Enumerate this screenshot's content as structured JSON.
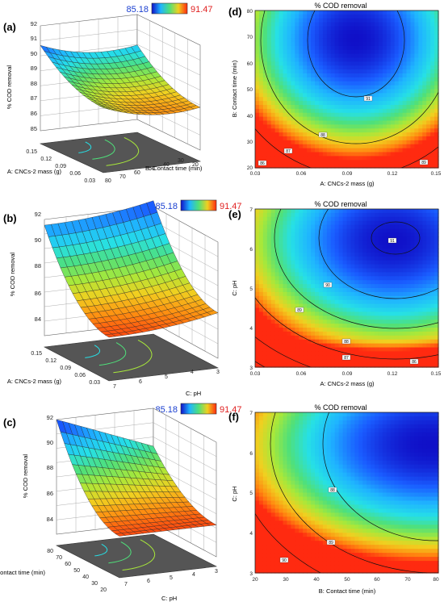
{
  "colorbar": {
    "min": "85.18",
    "max": "91.47",
    "min_color": "#1a3fd0",
    "max_color": "#e02020"
  },
  "palette": [
    "#1010c8",
    "#1a5cff",
    "#1fb4ff",
    "#26e0e6",
    "#4fe07a",
    "#a8e83a",
    "#f0d020",
    "#ff8a10",
    "#ff2a10"
  ],
  "panels": {
    "a": {
      "label": "(a)",
      "zlabel": "% COD removal",
      "xlabel": "A: CNCs-2 mass (g)",
      "ylabel": "B: Contact time (min)",
      "z_ticks": [
        "85",
        "86",
        "87",
        "88",
        "89",
        "90",
        "91",
        "92"
      ],
      "x_ticks": [
        "0.15",
        "0.12",
        "0.09",
        "0.06",
        "0.03"
      ],
      "y_ticks": [
        "80",
        "70",
        "60",
        "50",
        "40",
        "30",
        "20"
      ]
    },
    "b": {
      "label": "(b)",
      "zlabel": "% COD removal",
      "xlabel": "A: CNCs-2 mass (g)",
      "ylabel": "C: pH",
      "z_ticks": [
        "84",
        "86",
        "88",
        "90",
        "92"
      ],
      "x_ticks": [
        "0.15",
        "0.12",
        "0.09",
        "0.06",
        "0.03"
      ],
      "y_ticks": [
        "7",
        "6",
        "5",
        "4",
        "3"
      ]
    },
    "c": {
      "label": "(c)",
      "zlabel": "% COD removal",
      "xlabel": "B: Contact time (min)",
      "ylabel": "C: pH",
      "z_ticks": [
        "84",
        "86",
        "88",
        "90",
        "92"
      ],
      "x_ticks": [
        "80",
        "70",
        "60",
        "50",
        "40",
        "30",
        "20"
      ],
      "y_ticks": [
        "7",
        "6",
        "5",
        "4",
        "3"
      ]
    },
    "d": {
      "label": "(d)",
      "title": "% COD removal",
      "xlabel": "A: CNCs-2 mass (g)",
      "ylabel": "B: Contact time (min)",
      "x_ticks": [
        "0.03",
        "0.06",
        "0.09",
        "0.12",
        "0.15"
      ],
      "y_ticks": [
        "80",
        "70",
        "60",
        "50",
        "40",
        "30",
        "20"
      ],
      "contour_labels": [
        "86",
        "87",
        "88",
        "89",
        "91"
      ]
    },
    "e": {
      "label": "(e)",
      "title": "% COD removal",
      "xlabel": "A: CNCs-2 mass (g)",
      "ylabel": "C: pH",
      "x_ticks": [
        "0.03",
        "0.06",
        "0.09",
        "0.12",
        "0.15"
      ],
      "y_ticks": [
        "7",
        "6",
        "5",
        "4",
        "3"
      ],
      "contour_labels": [
        "91",
        "90",
        "89",
        "88",
        "87",
        "86"
      ]
    },
    "f": {
      "label": "(f)",
      "title": "% COD removal",
      "xlabel": "B: Contact time (min)",
      "ylabel": "C: pH",
      "x_ticks": [
        "20",
        "30",
        "40",
        "50",
        "60",
        "70",
        "80"
      ],
      "y_ticks": [
        "7",
        "6",
        "5",
        "4",
        "3"
      ],
      "contour_labels": [
        "90",
        "89",
        "88"
      ]
    }
  },
  "chart_data": [
    {
      "type": "heatmap",
      "title": "% COD removal",
      "xlabel": "A: CNCs-2 mass (g)",
      "ylabel": "B: Contact time (min)",
      "xlim": [
        0.03,
        0.15
      ],
      "ylim": [
        20,
        80
      ],
      "zlim": [
        85.18,
        91.47
      ],
      "grid": false
    },
    {
      "type": "heatmap",
      "title": "% COD removal",
      "xlabel": "A: CNCs-2 mass (g)",
      "ylabel": "C: pH",
      "xlim": [
        0.03,
        0.15
      ],
      "ylim": [
        3,
        7
      ],
      "zlim": [
        85.18,
        91.47
      ],
      "grid": false
    },
    {
      "type": "heatmap",
      "title": "% COD removal",
      "xlabel": "B: Contact time (min)",
      "ylabel": "C: pH",
      "xlim": [
        20,
        80
      ],
      "ylim": [
        3,
        7
      ],
      "zlim": [
        85.18,
        91.47
      ],
      "grid": false
    }
  ]
}
